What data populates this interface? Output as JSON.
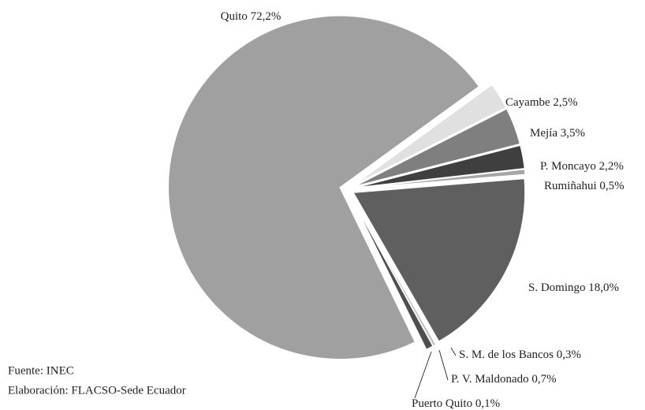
{
  "chart_data": {
    "type": "pie",
    "categories": [
      "Cayambe",
      "Mejía",
      "P. Moncayo",
      "Rumiñahui",
      "S. Domingo",
      "S. M. de los Bancos",
      "P. V. Maldonado",
      "Puerto Quito",
      "Quito"
    ],
    "values": [
      2.5,
      3.5,
      2.2,
      0.5,
      18.0,
      0.3,
      0.7,
      0.1,
      72.2
    ],
    "value_labels": [
      "2,5%",
      "3,5%",
      "2,2%",
      "0,5%",
      "18,0%",
      "0,3%",
      "0,7%",
      "0,1%",
      "72,2%"
    ],
    "colors": [
      "#e0e0e0",
      "#7f7f7f",
      "#3f3f3f",
      "#a6a6a6",
      "#5f5f5f",
      "#c2c2c2",
      "#4f4f4f",
      "#8f8f8f",
      "#a0a0a0"
    ],
    "notes": [
      "Fuente: INEC",
      "Elaboración: FLACSO-Sede Ecuador"
    ]
  }
}
